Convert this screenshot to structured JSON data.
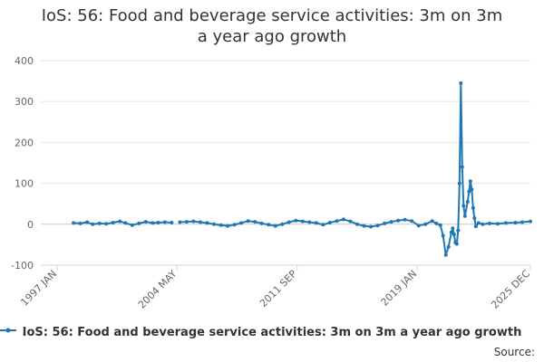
{
  "chart_data": {
    "type": "line",
    "title": "IoS: 56: Food and beverage service activities: 3m on 3m a year ago growth",
    "xlabel": "",
    "ylabel": "",
    "ylim": [
      -100,
      400
    ],
    "yticks": [
      "-100",
      "0",
      "100",
      "200",
      "300",
      "400"
    ],
    "xticks": [
      "1997 JAN",
      "2004 MAY",
      "2011 SEP",
      "2019 JAN",
      "2025 DEC"
    ],
    "grid": true,
    "legend_position": "bottom",
    "source_label": "Source:",
    "color": "#1f78b4",
    "series": [
      {
        "name": "IoS: 56: Food and beverage service activities: 3m on 3m a year ago growth",
        "points": [
          [
            "1998 JAN",
            3
          ],
          [
            "1998 JUN",
            2
          ],
          [
            "1998 NOV",
            5
          ],
          [
            "1999 MAR",
            0
          ],
          [
            "1999 AUG",
            2
          ],
          [
            "2000 JAN",
            1
          ],
          [
            "2000 JUN",
            4
          ],
          [
            "2000 NOV",
            7
          ],
          [
            "2001 MAR",
            3
          ],
          [
            "2001 AUG",
            -2
          ],
          [
            "2002 JAN",
            2
          ],
          [
            "2002 JUN",
            6
          ],
          [
            "2002 NOV",
            3
          ],
          [
            "2003 MAR",
            4
          ],
          [
            "2003 AUG",
            5
          ],
          [
            "2004 JAN",
            4
          ],
          [
            "2004 JUL",
            5
          ],
          [
            "2004 DEC",
            6
          ],
          [
            "2005 MAY",
            7
          ],
          [
            "2005 OCT",
            5
          ],
          [
            "2006 MAR",
            3
          ],
          [
            "2006 AUG",
            0
          ],
          [
            "2007 JAN",
            -2
          ],
          [
            "2007 JUN",
            -4
          ],
          [
            "2007 NOV",
            -1
          ],
          [
            "2008 APR",
            3
          ],
          [
            "2008 SEP",
            8
          ],
          [
            "2009 FEB",
            6
          ],
          [
            "2009 JUL",
            2
          ],
          [
            "2009 DEC",
            -1
          ],
          [
            "2010 MAY",
            -4
          ],
          [
            "2010 OCT",
            0
          ],
          [
            "2011 MAR",
            5
          ],
          [
            "2011 AUG",
            9
          ],
          [
            "2012 JAN",
            7
          ],
          [
            "2012 JUN",
            5
          ],
          [
            "2012 NOV",
            3
          ],
          [
            "2013 APR",
            -1
          ],
          [
            "2013 SEP",
            4
          ],
          [
            "2014 FEB",
            8
          ],
          [
            "2014 JUL",
            12
          ],
          [
            "2014 DEC",
            7
          ],
          [
            "2015 MAY",
            0
          ],
          [
            "2015 OCT",
            -4
          ],
          [
            "2016 MAR",
            -6
          ],
          [
            "2016 AUG",
            -3
          ],
          [
            "2017 JAN",
            2
          ],
          [
            "2017 JUN",
            6
          ],
          [
            "2017 NOV",
            9
          ],
          [
            "2018 APR",
            11
          ],
          [
            "2018 SEP",
            8
          ],
          [
            "2019 FEB",
            -3
          ],
          [
            "2019 JUL",
            0
          ],
          [
            "2019 DEC",
            8
          ],
          [
            "2020 MAR",
            2
          ],
          [
            "2020 JUN",
            -2
          ],
          [
            "2020 AUG",
            -28
          ],
          [
            "2020 OCT",
            -75
          ],
          [
            "2020 DEC",
            -55
          ],
          [
            "2021 FEB",
            -20
          ],
          [
            "2021 MAR",
            -10
          ],
          [
            "2021 APR",
            -25
          ],
          [
            "2021 MAY",
            -45
          ],
          [
            "2021 JUN",
            -48
          ],
          [
            "2021 JUL",
            -15
          ],
          [
            "2021 AUG",
            100
          ],
          [
            "2021 SEP",
            345
          ],
          [
            "2021 OCT",
            140
          ],
          [
            "2021 NOV",
            45
          ],
          [
            "2021 DEC",
            20
          ],
          [
            "2022 FEB",
            55
          ],
          [
            "2022 MAR",
            80
          ],
          [
            "2022 APR",
            105
          ],
          [
            "2022 MAY",
            85
          ],
          [
            "2022 JUN",
            40
          ],
          [
            "2022 JUL",
            15
          ],
          [
            "2022 AUG",
            -5
          ],
          [
            "2022 OCT",
            3
          ],
          [
            "2023 JAN",
            0
          ],
          [
            "2023 JUN",
            2
          ],
          [
            "2023 DEC",
            1
          ],
          [
            "2024 JUN",
            3
          ],
          [
            "2025 JAN",
            4
          ],
          [
            "2025 JUN",
            5
          ],
          [
            "2025 DEC",
            7
          ]
        ]
      }
    ]
  }
}
